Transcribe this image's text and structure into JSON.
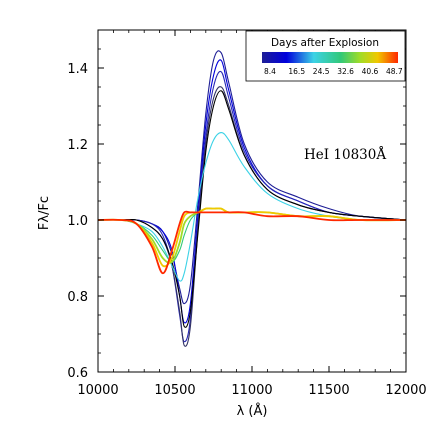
{
  "chart_data": {
    "type": "line",
    "xlabel": "λ (Å)",
    "ylabel": "Fλ/Fc",
    "xlim": [
      10000,
      12000
    ],
    "ylim": [
      0.6,
      1.5
    ],
    "xticks": [
      "10000",
      "10500",
      "11000",
      "11500",
      "12000"
    ],
    "yticks": [
      "0.6",
      "0.8",
      "1.0",
      "1.2",
      "1.4"
    ],
    "annotation": "HeI 10830Å",
    "legend": {
      "title": "Days after Explosion",
      "placement": "top-right",
      "colorbar_ticks": [
        "8.4",
        "16.5",
        "24.5",
        "32.6",
        "40.6",
        "48.7"
      ]
    },
    "series": [
      {
        "day": 8.4,
        "color": "#1e1e96",
        "x": [
          10000,
          10150,
          10250,
          10350,
          10420,
          10480,
          10530,
          10560,
          10600,
          10650,
          10700,
          10750,
          10800,
          10850,
          10950,
          11100,
          11300,
          11500,
          11700,
          12000
        ],
        "y": [
          1.0,
          1.0,
          1.0,
          0.99,
          0.97,
          0.91,
          0.82,
          0.78,
          0.83,
          1.05,
          1.28,
          1.42,
          1.44,
          1.36,
          1.2,
          1.1,
          1.06,
          1.03,
          1.01,
          1.0
        ]
      },
      {
        "day": 12.0,
        "color": "#0000dc",
        "x": [
          10000,
          10150,
          10250,
          10350,
          10420,
          10480,
          10530,
          10560,
          10600,
          10650,
          10700,
          10750,
          10800,
          10850,
          10950,
          11100,
          11300,
          11500,
          11700,
          12000
        ],
        "y": [
          1.0,
          1.0,
          1.0,
          0.99,
          0.97,
          0.92,
          0.8,
          0.73,
          0.78,
          1.02,
          1.25,
          1.38,
          1.42,
          1.34,
          1.19,
          1.09,
          1.05,
          1.02,
          1.01,
          1.0
        ]
      },
      {
        "day": 16.5,
        "color": "#2828b4",
        "x": [
          10000,
          10150,
          10250,
          10350,
          10420,
          10480,
          10530,
          10560,
          10600,
          10650,
          10700,
          10750,
          10800,
          10850,
          10950,
          11100,
          11300,
          11500,
          11700,
          12000
        ],
        "y": [
          1.0,
          1.0,
          1.0,
          0.99,
          0.96,
          0.88,
          0.75,
          0.68,
          0.74,
          1.0,
          1.22,
          1.35,
          1.39,
          1.32,
          1.18,
          1.09,
          1.05,
          1.02,
          1.01,
          1.0
        ]
      },
      {
        "day": 20.0,
        "color": "#323264",
        "x": [
          10000,
          10150,
          10250,
          10350,
          10420,
          10480,
          10530,
          10560,
          10600,
          10650,
          10700,
          10750,
          10800,
          10850,
          10950,
          11100,
          11300,
          11500,
          11700,
          12000
        ],
        "y": [
          1.0,
          1.0,
          1.0,
          0.98,
          0.95,
          0.88,
          0.76,
          0.67,
          0.72,
          0.98,
          1.2,
          1.32,
          1.35,
          1.3,
          1.17,
          1.08,
          1.04,
          1.02,
          1.01,
          1.0
        ]
      },
      {
        "day": 24.5,
        "color": "#000000",
        "x": [
          10000,
          10150,
          10250,
          10350,
          10420,
          10480,
          10530,
          10560,
          10600,
          10650,
          10700,
          10750,
          10800,
          10850,
          10950,
          11100,
          11300,
          11500,
          11700,
          12000
        ],
        "y": [
          1.0,
          1.0,
          1.0,
          0.98,
          0.95,
          0.89,
          0.8,
          0.72,
          0.76,
          0.97,
          1.18,
          1.3,
          1.34,
          1.29,
          1.17,
          1.08,
          1.04,
          1.02,
          1.01,
          1.0
        ]
      },
      {
        "day": 32.6,
        "color": "#3cd2e6",
        "x": [
          10000,
          10150,
          10250,
          10350,
          10420,
          10480,
          10530,
          10560,
          10600,
          10650,
          10700,
          10750,
          10800,
          10850,
          10950,
          11100,
          11300,
          11500,
          11700,
          12000
        ],
        "y": [
          1.0,
          1.0,
          0.99,
          0.97,
          0.93,
          0.88,
          0.84,
          0.86,
          0.94,
          1.06,
          1.15,
          1.21,
          1.23,
          1.21,
          1.14,
          1.07,
          1.03,
          1.01,
          1.0,
          1.0
        ]
      },
      {
        "day": 36.0,
        "color": "#32c878",
        "x": [
          10000,
          10150,
          10250,
          10350,
          10420,
          10480,
          10530,
          10560,
          10600,
          10650,
          10700,
          10750,
          10800,
          10850,
          10950,
          11100,
          11300,
          11500,
          11700,
          12000
        ],
        "y": [
          1.0,
          1.0,
          0.99,
          0.96,
          0.92,
          0.89,
          0.92,
          0.96,
          1.0,
          1.02,
          1.03,
          1.03,
          1.03,
          1.02,
          1.02,
          1.02,
          1.01,
          1.01,
          1.0,
          1.0
        ]
      },
      {
        "day": 40.6,
        "color": "#a0dc28",
        "x": [
          10000,
          10150,
          10250,
          10350,
          10420,
          10480,
          10530,
          10560,
          10600,
          10650,
          10700,
          10750,
          10800,
          10850,
          10950,
          11100,
          11300,
          11500,
          11700,
          12000
        ],
        "y": [
          1.0,
          1.0,
          0.99,
          0.95,
          0.9,
          0.89,
          0.94,
          0.99,
          1.01,
          1.02,
          1.03,
          1.03,
          1.03,
          1.02,
          1.02,
          1.02,
          1.01,
          1.01,
          1.0,
          1.0
        ]
      },
      {
        "day": 44.0,
        "color": "#f0c800",
        "x": [
          10000,
          10150,
          10250,
          10350,
          10420,
          10480,
          10530,
          10560,
          10600,
          10650,
          10700,
          10750,
          10800,
          10850,
          10950,
          11100,
          11300,
          11500,
          11700,
          12000
        ],
        "y": [
          1.0,
          1.0,
          0.99,
          0.94,
          0.88,
          0.9,
          0.97,
          1.01,
          1.02,
          1.02,
          1.03,
          1.03,
          1.03,
          1.02,
          1.02,
          1.02,
          1.01,
          1.01,
          1.0,
          1.0
        ]
      },
      {
        "day": 48.7,
        "color": "#ff2800",
        "x": [
          10000,
          10150,
          10250,
          10350,
          10420,
          10480,
          10530,
          10560,
          10600,
          10650,
          10700,
          10750,
          10800,
          10850,
          10950,
          11100,
          11300,
          11500,
          11700,
          12000
        ],
        "y": [
          1.0,
          1.0,
          0.99,
          0.93,
          0.86,
          0.92,
          0.99,
          1.02,
          1.02,
          1.02,
          1.02,
          1.02,
          1.02,
          1.02,
          1.02,
          1.01,
          1.01,
          1.0,
          1.0,
          1.0
        ]
      }
    ]
  }
}
